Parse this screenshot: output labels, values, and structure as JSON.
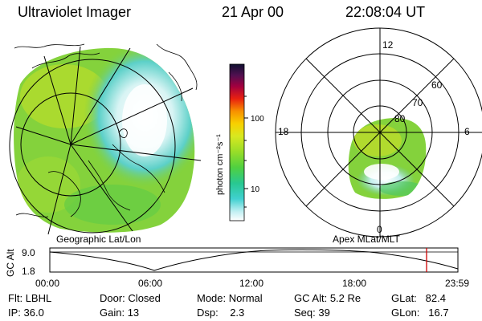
{
  "header": {
    "title": "Ultraviolet Imager",
    "date": "21 Apr 00",
    "time": "22:08:04 UT"
  },
  "colorbar": {
    "unit_label": "photon cm⁻²s⁻¹",
    "ticks": [
      "100",
      "10"
    ]
  },
  "geographic_panel": {
    "label": "Geographic Lat/Lon"
  },
  "apex_panel": {
    "label": "Apex MLat/MLT",
    "mlt_labels": {
      "top": "12",
      "left": "18",
      "right": "6",
      "bottom": "0"
    },
    "lat_labels": [
      "60",
      "70",
      "80"
    ]
  },
  "altitude_plot": {
    "ylabel": "GC Alt",
    "ymax_label": "9.0",
    "ymin_label": "1.8",
    "xticks": [
      "00:00",
      "06:00",
      "12:00",
      "18:00",
      "23:59"
    ],
    "current_time_marker_color": "#d00000"
  },
  "info": {
    "flt_label": "Flt:",
    "flt_value": "LBHL",
    "ip_label": "IP:",
    "ip_value": "36.0",
    "door_label": "Door:",
    "door_value": "Closed",
    "gain_label": "Gain:",
    "gain_value": "13",
    "mode_label": "Mode:",
    "mode_value": "Normal",
    "dsp_label": "Dsp:",
    "dsp_value": "2.3",
    "gcalt_label": "GC Alt:",
    "gcalt_value": "5.2 Re",
    "seq_label": "Seq:",
    "seq_value": "39",
    "glat_label": "GLat:",
    "glat_value": "82.4",
    "glon_label": "GLon:",
    "glon_value": "16.7"
  }
}
